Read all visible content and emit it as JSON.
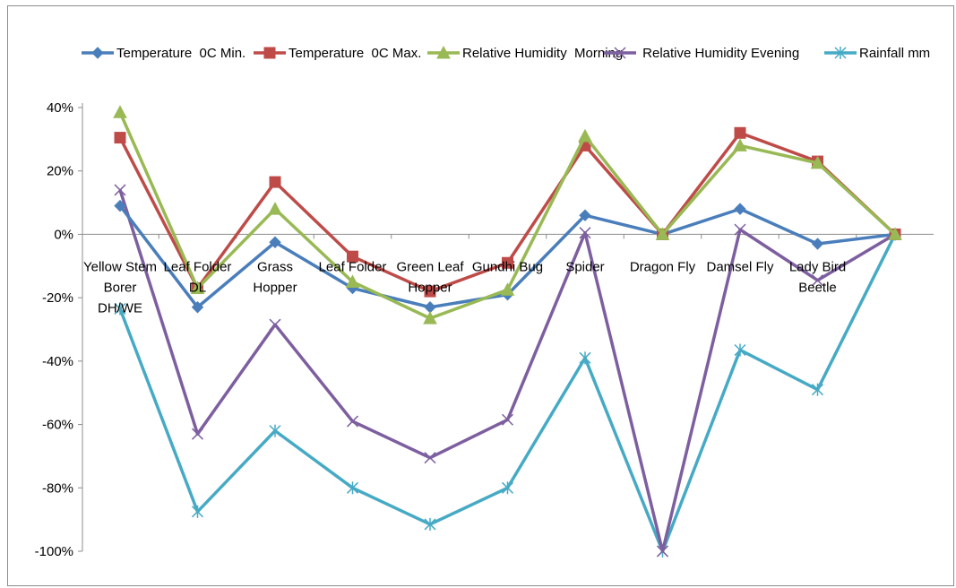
{
  "chart_data": {
    "type": "line",
    "categories": [
      "Yellow Stem Borer DH/WE",
      "Leaf Folder DL",
      "Grass Hopper",
      "Leaf Folder",
      "Green Leaf Hopper",
      "Gundhi Bug",
      "Spider",
      "Dragon Fly",
      "Damsel Fly",
      "Lady Bird Beetle",
      ""
    ],
    "category_lines": [
      [
        "Yellow Stem",
        "Borer",
        "DH/WE"
      ],
      [
        "Leaf Folder",
        "DL"
      ],
      [
        "Grass",
        "Hopper"
      ],
      [
        "Leaf Folder"
      ],
      [
        "Green Leaf",
        "Hopper"
      ],
      [
        "Gundhi Bug"
      ],
      [
        "Spider"
      ],
      [
        "Dragon Fly"
      ],
      [
        "Damsel Fly"
      ],
      [
        "Lady Bird",
        "Beetle"
      ],
      []
    ],
    "ylim": [
      -100,
      40
    ],
    "yticks": [
      -100,
      -80,
      -60,
      -40,
      -20,
      0,
      20,
      40
    ],
    "ytick_labels": [
      "-100%",
      "-80%",
      "-60%",
      "-40%",
      "-20%",
      "0%",
      "20%",
      "40%"
    ],
    "legend_position": "top",
    "series": [
      {
        "name": "Temperature  0C Min.",
        "color": "#4a7ebb",
        "marker": "diamond",
        "values": [
          9,
          -23,
          -2.5,
          -17,
          -23,
          -19,
          6,
          0,
          8,
          -3,
          0
        ]
      },
      {
        "name": "Temperature  0C Max.",
        "color": "#be4b48",
        "marker": "square",
        "values": [
          30.5,
          -17,
          16.5,
          -7,
          -18,
          -9,
          28,
          0,
          32,
          23,
          0
        ]
      },
      {
        "name": "Relative Humidity  Morning",
        "color": "#98b954",
        "marker": "triangle",
        "values": [
          38.5,
          -17,
          8,
          -15,
          -26.5,
          -17.5,
          31,
          0,
          28,
          22.5,
          0
        ]
      },
      {
        "name": " Relative Humidity Evening",
        "color": "#7d5fa0",
        "marker": "x",
        "values": [
          14,
          -63,
          -28.5,
          -59,
          -70.5,
          -58.5,
          0.5,
          -100,
          1.5,
          -14.5,
          0
        ]
      },
      {
        "name": "Rainfall mm",
        "color": "#46aac5",
        "marker": "star",
        "values": [
          -23.5,
          -87.5,
          -62,
          -80,
          -91.5,
          -80,
          -39,
          -100,
          -36.5,
          -49,
          0
        ]
      }
    ]
  }
}
